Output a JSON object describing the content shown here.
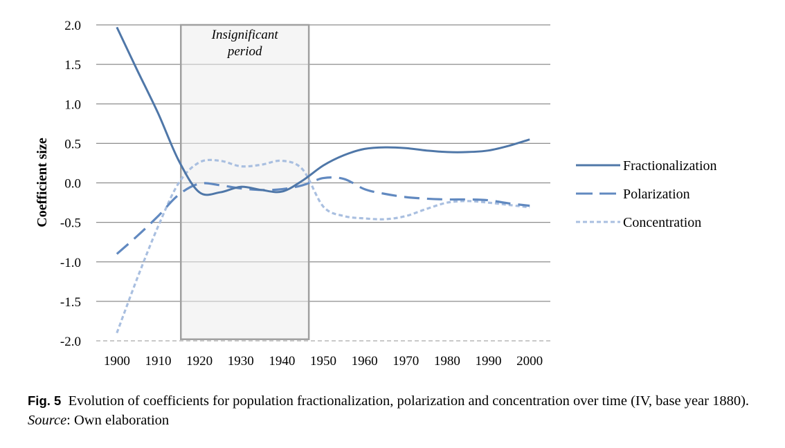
{
  "chart_data": {
    "type": "line",
    "ylabel": "Coefficient size",
    "xlabel": "",
    "x": [
      1900,
      1905,
      1910,
      1915,
      1920,
      1925,
      1930,
      1935,
      1940,
      1945,
      1950,
      1955,
      1960,
      1965,
      1970,
      1975,
      1980,
      1985,
      1990,
      1995,
      2000
    ],
    "xticks": [
      "1900",
      "1910",
      "1920",
      "1930",
      "1940",
      "1950",
      "1960",
      "1970",
      "1980",
      "1990",
      "2000"
    ],
    "yticks": [
      "2.0",
      "1.5",
      "1.0",
      "0.5",
      "0.0",
      "-0.5",
      "-1.0",
      "-1.5",
      "-2.0"
    ],
    "ylim": [
      -2.0,
      2.0
    ],
    "xlim": [
      1895,
      2005
    ],
    "grid": "horizontal",
    "legend_position": "right",
    "series": [
      {
        "name": "Fractionalization",
        "color": "#4f77a8",
        "style": "solid",
        "values": [
          1.97,
          1.42,
          0.88,
          0.28,
          -0.12,
          -0.12,
          -0.05,
          -0.09,
          -0.11,
          0.03,
          0.22,
          0.35,
          0.43,
          0.45,
          0.44,
          0.41,
          0.39,
          0.39,
          0.41,
          0.47,
          0.55
        ]
      },
      {
        "name": "Polarization",
        "color": "#6189c0",
        "style": "dashed",
        "values": [
          -0.9,
          -0.67,
          -0.42,
          -0.15,
          -0.01,
          -0.03,
          -0.07,
          -0.09,
          -0.08,
          -0.03,
          0.06,
          0.05,
          -0.08,
          -0.14,
          -0.18,
          -0.2,
          -0.21,
          -0.21,
          -0.22,
          -0.26,
          -0.29
        ]
      },
      {
        "name": "Concentration",
        "color": "#a9bfe0",
        "style": "dotted",
        "values": [
          -1.9,
          -1.2,
          -0.55,
          0.0,
          0.26,
          0.28,
          0.21,
          0.23,
          0.28,
          0.17,
          -0.3,
          -0.42,
          -0.45,
          -0.46,
          -0.42,
          -0.33,
          -0.25,
          -0.23,
          -0.25,
          -0.28,
          -0.31
        ]
      }
    ],
    "annotations": [
      {
        "text_lines": [
          "Insignificant",
          "period"
        ],
        "x_range": [
          1915.5,
          1946.5
        ],
        "y_range": [
          -1.98,
          2.0
        ]
      }
    ]
  },
  "caption": {
    "fig_label": "Fig. 5",
    "text1": "Evolution of coefficients for population fractionalization, polarization and concentration over time (IV, base year 1880).",
    "source_label": "Source",
    "text2": ": Own elaboration"
  }
}
